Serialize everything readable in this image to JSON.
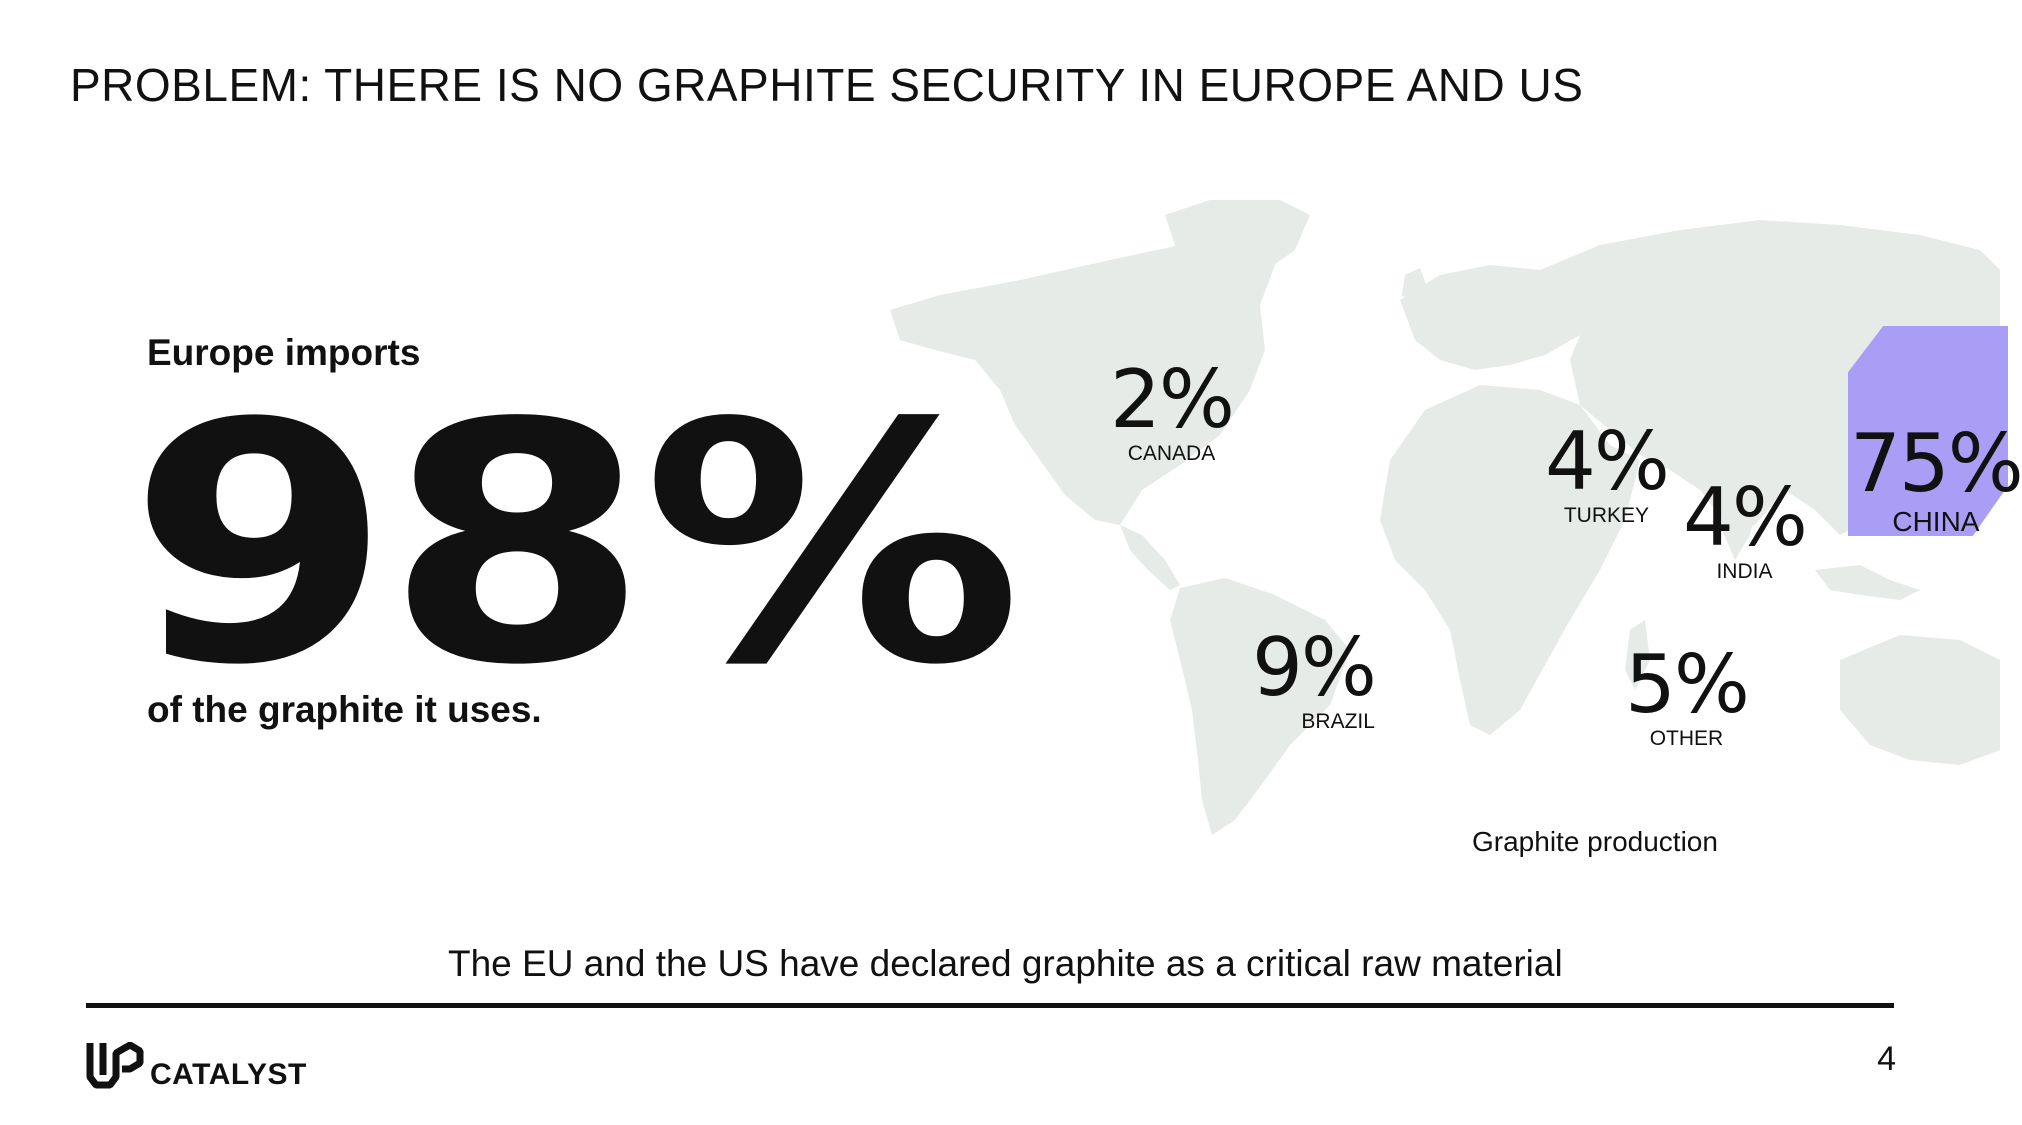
{
  "slide": {
    "title": "PROBLEM: THERE IS NO GRAPHITE SECURITY IN EUROPE AND US",
    "imports_label": "Europe imports",
    "big_number": "98%",
    "uses_label": "of the graphite it uses.",
    "map_caption": "Graphite production",
    "footer_statement": "The EU and the US have declared graphite as a critical raw material",
    "logo_text": "CATALYST",
    "page_number": "4"
  },
  "stats": {
    "canada": {
      "value": "2%",
      "name": "CANADA"
    },
    "turkey": {
      "value": "4%",
      "name": "TURKEY"
    },
    "india": {
      "value": "4%",
      "name": "INDIA"
    },
    "china": {
      "value": "75%",
      "name": "CHINA"
    },
    "brazil": {
      "value": "9%",
      "name": "BRAZIL"
    },
    "other": {
      "value": "5%",
      "name": "OTHER"
    }
  },
  "colors": {
    "china_highlight": "#a99df6",
    "map_land": "#e6ebe8",
    "text": "#111111"
  },
  "icons": {
    "logo": "up-catalyst-logo-icon",
    "map": "world-map"
  }
}
